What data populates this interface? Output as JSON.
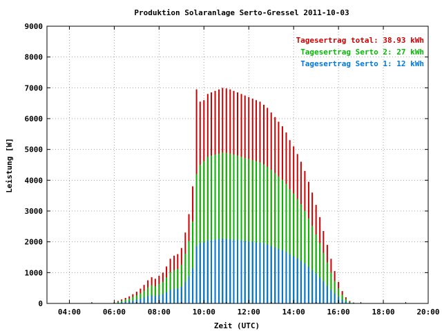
{
  "chart_data": {
    "type": "bar",
    "title": "Produktion Solaranlage Serto-Gressel 2011-10-03",
    "xlabel": "Zeit (UTC)",
    "ylabel": "Leistung [W]",
    "xlim": [
      3.0,
      20.0
    ],
    "ylim": [
      0,
      9000
    ],
    "x_ticks": [
      4,
      6,
      8,
      10,
      12,
      14,
      16,
      18,
      20
    ],
    "x_tick_labels": [
      "04:00",
      "06:00",
      "08:00",
      "10:00",
      "12:00",
      "14:00",
      "16:00",
      "18:00",
      "20:00"
    ],
    "y_ticks": [
      0,
      1000,
      2000,
      3000,
      4000,
      5000,
      6000,
      7000,
      8000,
      9000
    ],
    "y_tick_labels": [
      "0",
      "1000",
      "2000",
      "3000",
      "4000",
      "5000",
      "6000",
      "7000",
      "8000",
      "9000"
    ],
    "grid": true,
    "legend_position": "top-right",
    "legend": [
      {
        "label": "Tagesertrag total: 38.93 kWh",
        "color": "#cc0000"
      },
      {
        "label": "Tagesertrag Serto 2: 27 kWh",
        "color": "#00bb00"
      },
      {
        "label": "Tagesertrag Serto 1: 12 kWh",
        "color": "#0077dd"
      }
    ],
    "series_colors": {
      "total": "#cc0000",
      "serto2": "#00bb00",
      "serto1": "#0077dd"
    },
    "x": [
      6.0,
      6.17,
      6.33,
      6.5,
      6.67,
      6.83,
      7.0,
      7.17,
      7.33,
      7.5,
      7.67,
      7.83,
      8.0,
      8.17,
      8.33,
      8.5,
      8.67,
      8.83,
      9.0,
      9.17,
      9.33,
      9.5,
      9.67,
      9.83,
      10.0,
      10.17,
      10.33,
      10.5,
      10.67,
      10.83,
      11.0,
      11.17,
      11.33,
      11.5,
      11.67,
      11.83,
      12.0,
      12.17,
      12.33,
      12.5,
      12.67,
      12.83,
      13.0,
      13.17,
      13.33,
      13.5,
      13.67,
      13.83,
      14.0,
      14.17,
      14.33,
      14.5,
      14.67,
      14.83,
      15.0,
      15.17,
      15.33,
      15.5,
      15.67,
      15.83,
      16.0,
      16.17,
      16.33,
      16.5,
      16.67,
      16.83,
      17.0
    ],
    "series": [
      {
        "name": "Total",
        "values": [
          30,
          80,
          130,
          180,
          230,
          300,
          380,
          480,
          600,
          750,
          850,
          800,
          900,
          1000,
          1200,
          1450,
          1550,
          1600,
          1800,
          2300,
          2900,
          3800,
          6950,
          6550,
          6600,
          6800,
          6850,
          6900,
          6950,
          7000,
          6980,
          6950,
          6900,
          6850,
          6800,
          6750,
          6700,
          6650,
          6600,
          6550,
          6450,
          6350,
          6200,
          6050,
          5900,
          5750,
          5550,
          5300,
          5100,
          4850,
          4600,
          4300,
          3950,
          3600,
          3200,
          2800,
          2350,
          1900,
          1450,
          1050,
          700,
          400,
          200,
          80,
          30,
          10,
          0
        ]
      },
      {
        "name": "Serto 2",
        "values": [
          20,
          55,
          90,
          125,
          160,
          210,
          260,
          330,
          410,
          520,
          590,
          560,
          630,
          700,
          840,
          1010,
          1080,
          1120,
          1260,
          1610,
          2030,
          2660,
          4200,
          4500,
          4620,
          4760,
          4800,
          4830,
          4860,
          4900,
          4890,
          4860,
          4830,
          4800,
          4760,
          4720,
          4690,
          4650,
          4620,
          4580,
          4510,
          4440,
          4340,
          4230,
          4130,
          4020,
          3880,
          3710,
          3570,
          3390,
          3220,
          3010,
          2760,
          2520,
          2240,
          1960,
          1640,
          1330,
          1010,
          730,
          490,
          280,
          140,
          55,
          20,
          5,
          0
        ]
      },
      {
        "name": "Serto 1",
        "values": [
          10,
          25,
          40,
          55,
          70,
          90,
          120,
          150,
          190,
          230,
          260,
          240,
          270,
          300,
          360,
          440,
          470,
          480,
          540,
          690,
          870,
          1140,
          1850,
          1950,
          1980,
          2040,
          2050,
          2070,
          2090,
          2100,
          2090,
          2080,
          2070,
          2050,
          2040,
          2030,
          2010,
          2000,
          1980,
          1970,
          1940,
          1910,
          1860,
          1820,
          1770,
          1730,
          1670,
          1590,
          1530,
          1460,
          1380,
          1290,
          1190,
          1080,
          960,
          840,
          710,
          570,
          440,
          320,
          210,
          120,
          60,
          25,
          10,
          5,
          0
        ]
      }
    ]
  }
}
